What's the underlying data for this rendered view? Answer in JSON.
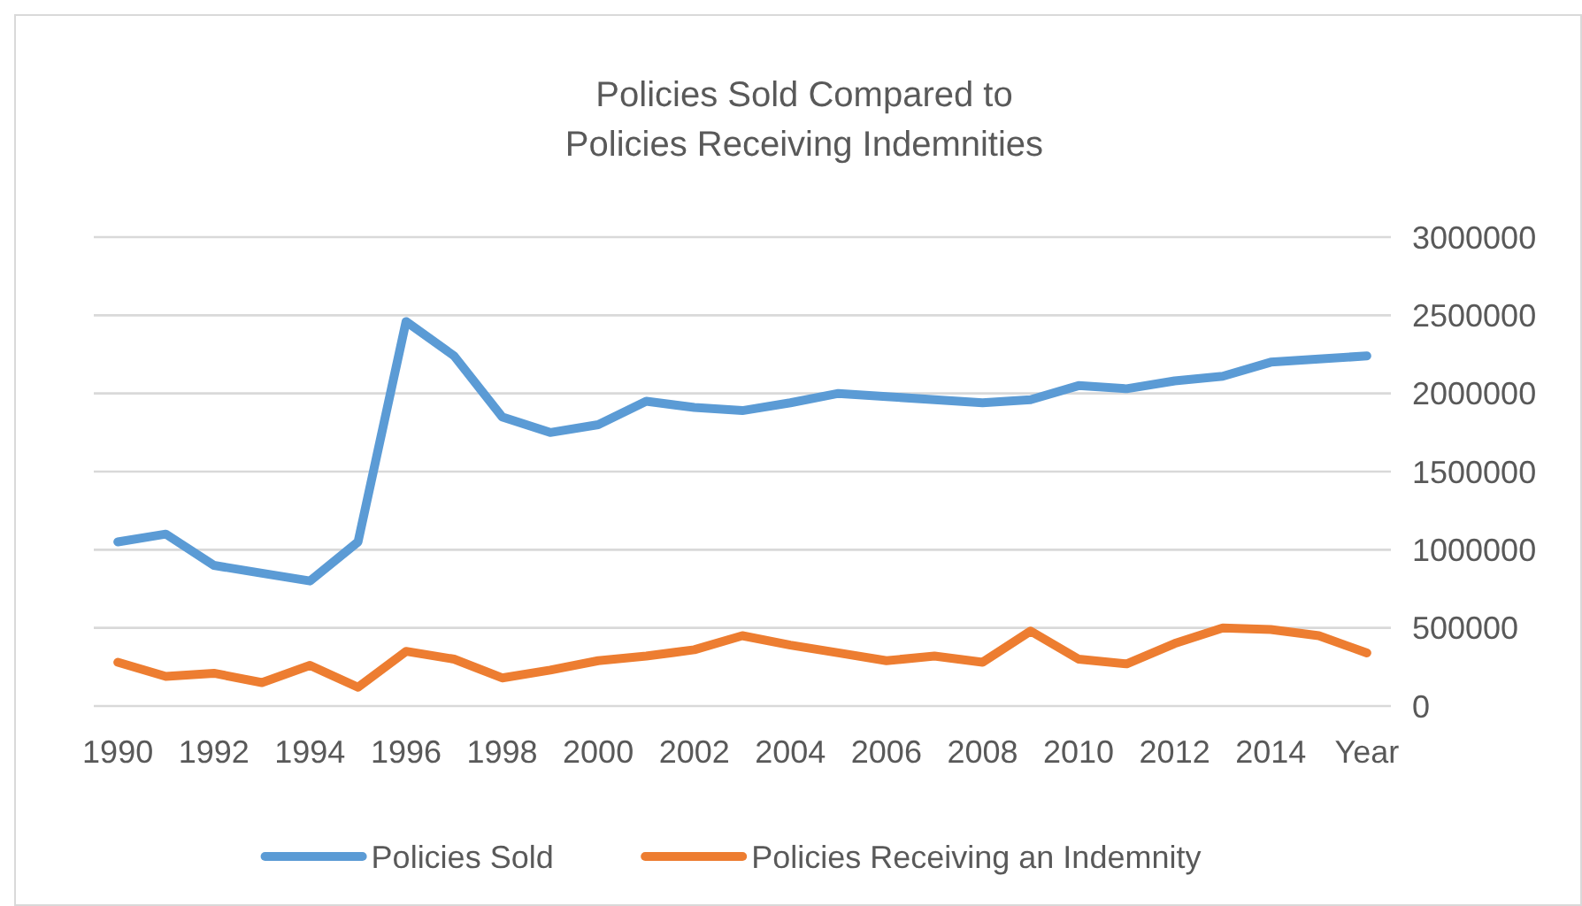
{
  "chart_data": {
    "type": "line",
    "title": "Policies Sold Compared to\nPolicies Receiving Indemnities",
    "xlabel": "Year",
    "categories": [
      "1990",
      null,
      "1992",
      null,
      "1994",
      null,
      "1996",
      null,
      "1998",
      null,
      "2000",
      null,
      "2002",
      null,
      "2004",
      null,
      "2006",
      null,
      "2008",
      null,
      "2010",
      null,
      "2012",
      null,
      "2014",
      null,
      null
    ],
    "series": [
      {
        "name": "Policies Sold",
        "color": "#5b9bd5",
        "values": [
          1050000,
          1100000,
          900000,
          850000,
          800000,
          1050000,
          2460000,
          2240000,
          1850000,
          1750000,
          1800000,
          1950000,
          1910000,
          1890000,
          1940000,
          2000000,
          1980000,
          1960000,
          1940000,
          1960000,
          2050000,
          2030000,
          2080000,
          2110000,
          2200000,
          2220000,
          2240000
        ]
      },
      {
        "name": "Policies Receiving an Indemnity",
        "color": "#ed7d31",
        "values": [
          280000,
          190000,
          210000,
          150000,
          260000,
          120000,
          350000,
          300000,
          180000,
          230000,
          290000,
          320000,
          360000,
          450000,
          390000,
          340000,
          290000,
          320000,
          280000,
          480000,
          300000,
          270000,
          400000,
          500000,
          490000,
          450000,
          340000
        ]
      }
    ],
    "ylim": [
      0,
      3000000
    ],
    "yticks": [
      0,
      500000,
      1000000,
      1500000,
      2000000,
      2500000,
      3000000
    ],
    "grid": "y",
    "legend": "bottom",
    "marker": "none",
    "line_style": "solid"
  }
}
